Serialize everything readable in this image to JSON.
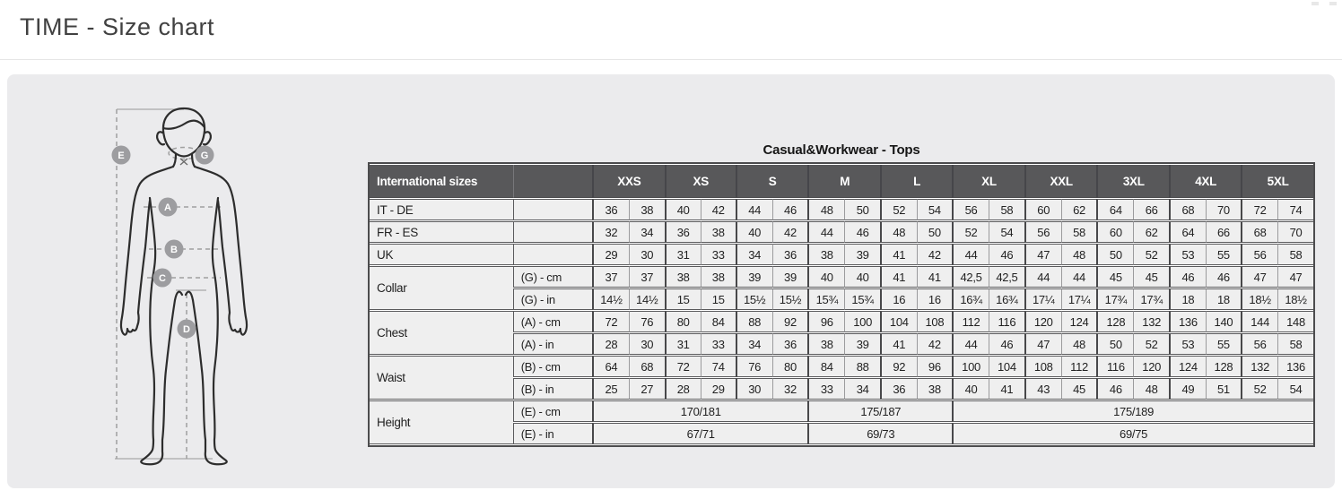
{
  "page": {
    "title": "TIME - Size chart"
  },
  "colors": {
    "panel_bg": "#ebebed",
    "table_header_bg": "#58585a",
    "cell_bg": "#efefef",
    "border_dark": "#4c4c4e",
    "border_inner": "#9b9b9d",
    "marker_circle": "#9d9da0",
    "figure_stroke": "#2d2d2d"
  },
  "diagram": {
    "name": "body-measurement-figure",
    "marker_labels": [
      "E",
      "G",
      "A",
      "B",
      "C",
      "D"
    ]
  },
  "table": {
    "title": "Casual&Workwear - Tops",
    "corner_label": "International sizes",
    "sizes": [
      "XXS",
      "XS",
      "S",
      "M",
      "L",
      "XL",
      "XXL",
      "3XL",
      "4XL",
      "5XL"
    ],
    "sections": [
      {
        "label": "IT - DE",
        "rows": [
          {
            "unit": "",
            "values": [
              "36",
              "38",
              "40",
              "42",
              "44",
              "46",
              "48",
              "50",
              "52",
              "54",
              "56",
              "58",
              "60",
              "62",
              "64",
              "66",
              "68",
              "70",
              "72",
              "74"
            ]
          }
        ]
      },
      {
        "label": "FR - ES",
        "rows": [
          {
            "unit": "",
            "values": [
              "32",
              "34",
              "36",
              "38",
              "40",
              "42",
              "44",
              "46",
              "48",
              "50",
              "52",
              "54",
              "56",
              "58",
              "60",
              "62",
              "64",
              "66",
              "68",
              "70"
            ]
          }
        ]
      },
      {
        "label": "UK",
        "rows": [
          {
            "unit": "",
            "values": [
              "29",
              "30",
              "31",
              "33",
              "34",
              "36",
              "38",
              "39",
              "41",
              "42",
              "44",
              "46",
              "47",
              "48",
              "50",
              "52",
              "53",
              "55",
              "56",
              "58"
            ]
          }
        ]
      },
      {
        "label": "Collar",
        "rows": [
          {
            "unit": "(G) - cm",
            "values": [
              "37",
              "37",
              "38",
              "38",
              "39",
              "39",
              "40",
              "40",
              "41",
              "41",
              "42,5",
              "42,5",
              "44",
              "44",
              "45",
              "45",
              "46",
              "46",
              "47",
              "47"
            ]
          },
          {
            "unit": "(G) - in",
            "values": [
              "14½",
              "14½",
              "15",
              "15",
              "15½",
              "15½",
              "15¾",
              "15¾",
              "16",
              "16",
              "16¾",
              "16¾",
              "17¼",
              "17¼",
              "17¾",
              "17¾",
              "18",
              "18",
              "18½",
              "18½"
            ]
          }
        ]
      },
      {
        "label": "Chest",
        "rows": [
          {
            "unit": "(A) - cm",
            "values": [
              "72",
              "76",
              "80",
              "84",
              "88",
              "92",
              "96",
              "100",
              "104",
              "108",
              "112",
              "116",
              "120",
              "124",
              "128",
              "132",
              "136",
              "140",
              "144",
              "148"
            ]
          },
          {
            "unit": "(A) - in",
            "values": [
              "28",
              "30",
              "31",
              "33",
              "34",
              "36",
              "38",
              "39",
              "41",
              "42",
              "44",
              "46",
              "47",
              "48",
              "50",
              "52",
              "53",
              "55",
              "56",
              "58"
            ]
          }
        ]
      },
      {
        "label": "Waist",
        "rows": [
          {
            "unit": "(B) - cm",
            "values": [
              "64",
              "68",
              "72",
              "74",
              "76",
              "80",
              "84",
              "88",
              "92",
              "96",
              "100",
              "104",
              "108",
              "112",
              "116",
              "120",
              "124",
              "128",
              "132",
              "136"
            ]
          },
          {
            "unit": "(B) - in",
            "values": [
              "25",
              "27",
              "28",
              "29",
              "30",
              "32",
              "33",
              "34",
              "36",
              "38",
              "40",
              "41",
              "43",
              "45",
              "46",
              "48",
              "49",
              "51",
              "52",
              "54"
            ]
          }
        ]
      },
      {
        "label": "Height",
        "rows": [
          {
            "unit": "(E) - cm",
            "spans": [
              {
                "cols": 6,
                "value": "170/181"
              },
              {
                "cols": 4,
                "value": "175/187"
              },
              {
                "cols": 10,
                "value": "175/189"
              }
            ]
          },
          {
            "unit": "(E) - in",
            "spans": [
              {
                "cols": 6,
                "value": "67/71"
              },
              {
                "cols": 4,
                "value": "69/73"
              },
              {
                "cols": 10,
                "value": "69/75"
              }
            ]
          }
        ]
      }
    ]
  }
}
